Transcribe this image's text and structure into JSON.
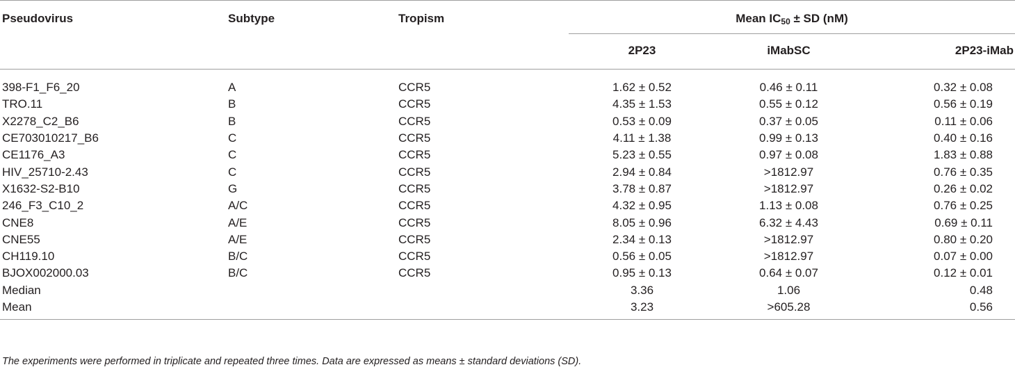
{
  "header": {
    "pseudovirus": "Pseudovirus",
    "subtype": "Subtype",
    "tropism": "Tropism",
    "mean_ic_prefix": "Mean IC",
    "mean_ic_sub": "50",
    "mean_ic_suffix": " ± SD (nM)",
    "col_2p23": "2P23",
    "col_imabsc": "iMabSC",
    "col_2p23imab": "2P23-iMab"
  },
  "rows": [
    {
      "pseudovirus": "398-F1_F6_20",
      "subtype": "A",
      "tropism": "CCR5",
      "v2p23": "1.62 ± 0.52",
      "vimabsc": "0.46 ± 0.11",
      "v2p23imab": "0.32 ± 0.08"
    },
    {
      "pseudovirus": "TRO.11",
      "subtype": "B",
      "tropism": "CCR5",
      "v2p23": "4.35 ± 1.53",
      "vimabsc": "0.55 ± 0.12",
      "v2p23imab": "0.56 ± 0.19"
    },
    {
      "pseudovirus": "X2278_C2_B6",
      "subtype": "B",
      "tropism": "CCR5",
      "v2p23": "0.53 ± 0.09",
      "vimabsc": "0.37 ± 0.05",
      "v2p23imab": "0.11 ± 0.06"
    },
    {
      "pseudovirus": "CE703010217_B6",
      "subtype": "C",
      "tropism": "CCR5",
      "v2p23": "4.11 ± 1.38",
      "vimabsc": "0.99 ± 0.13",
      "v2p23imab": "0.40 ± 0.16"
    },
    {
      "pseudovirus": "CE1176_A3",
      "subtype": "C",
      "tropism": "CCR5",
      "v2p23": "5.23 ± 0.55",
      "vimabsc": "0.97 ± 0.08",
      "v2p23imab": "1.83 ± 0.88"
    },
    {
      "pseudovirus": "HIV_25710-2.43",
      "subtype": "C",
      "tropism": "CCR5",
      "v2p23": "2.94 ± 0.84",
      "vimabsc": ">1812.97",
      "v2p23imab": "0.76 ± 0.35"
    },
    {
      "pseudovirus": "X1632-S2-B10",
      "subtype": "G",
      "tropism": "CCR5",
      "v2p23": "3.78 ± 0.87",
      "vimabsc": ">1812.97",
      "v2p23imab": "0.26 ± 0.02"
    },
    {
      "pseudovirus": "246_F3_C10_2",
      "subtype": "A/C",
      "tropism": "CCR5",
      "v2p23": "4.32 ± 0.95",
      "vimabsc": "1.13 ± 0.08",
      "v2p23imab": "0.76 ± 0.25"
    },
    {
      "pseudovirus": "CNE8",
      "subtype": "A/E",
      "tropism": "CCR5",
      "v2p23": "8.05 ± 0.96",
      "vimabsc": "6.32 ± 4.43",
      "v2p23imab": "0.69 ± 0.11"
    },
    {
      "pseudovirus": "CNE55",
      "subtype": "A/E",
      "tropism": "CCR5",
      "v2p23": "2.34 ± 0.13",
      "vimabsc": ">1812.97",
      "v2p23imab": "0.80 ± 0.20"
    },
    {
      "pseudovirus": "CH119.10",
      "subtype": "B/C",
      "tropism": "CCR5",
      "v2p23": "0.56 ± 0.05",
      "vimabsc": ">1812.97",
      "v2p23imab": "0.07 ± 0.00"
    },
    {
      "pseudovirus": "BJOX002000.03",
      "subtype": "B/C",
      "tropism": "CCR5",
      "v2p23": "0.95 ± 0.13",
      "vimabsc": "0.64 ± 0.07",
      "v2p23imab": "0.12 ± 0.01"
    },
    {
      "pseudovirus": "Median",
      "subtype": "",
      "tropism": "",
      "v2p23": "3.36",
      "vimabsc": "1.06",
      "v2p23imab": "0.48"
    },
    {
      "pseudovirus": "Mean",
      "subtype": "",
      "tropism": "",
      "v2p23": "3.23",
      "vimabsc": ">605.28",
      "v2p23imab": "0.56"
    }
  ],
  "footnote": "The experiments were performed in triplicate and repeated three times. Data are expressed as means ± standard deviations (SD)."
}
